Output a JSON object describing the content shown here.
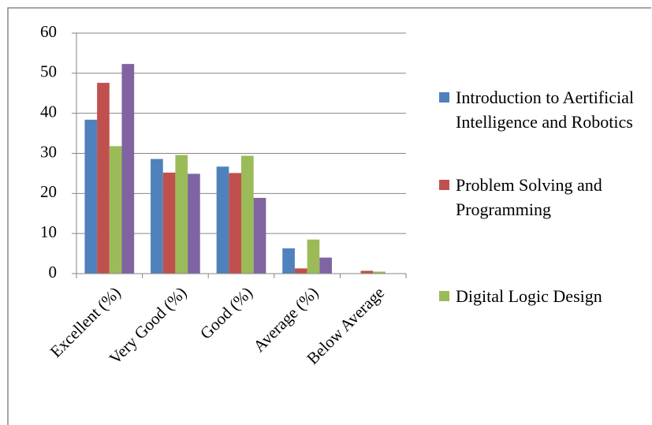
{
  "chart_data": {
    "type": "bar",
    "categories": [
      "Excellent (%)",
      "Very Good (%)",
      "Good (%)",
      "Average (%)",
      "Below Average"
    ],
    "series": [
      {
        "name": "Introduction to Aertificial Intelligence and Robotics",
        "color": "#4f81bd",
        "values": [
          38.4,
          28.6,
          26.7,
          6.3,
          0
        ]
      },
      {
        "name": "Problem Solving and Programming",
        "color": "#c0504d",
        "values": [
          47.6,
          25.2,
          25.1,
          1.3,
          0.7
        ]
      },
      {
        "name": "Digital Logic Design",
        "color": "#9bbb59",
        "values": [
          31.8,
          29.6,
          29.4,
          8.5,
          0.5
        ]
      },
      {
        "color": "#8064a2",
        "values": [
          52.3,
          24.9,
          18.9,
          4.0,
          0
        ]
      }
    ],
    "ylim": [
      0,
      60
    ],
    "yticks": [
      0,
      10,
      20,
      30,
      40,
      50,
      60
    ],
    "grid": true,
    "legend": "right"
  }
}
